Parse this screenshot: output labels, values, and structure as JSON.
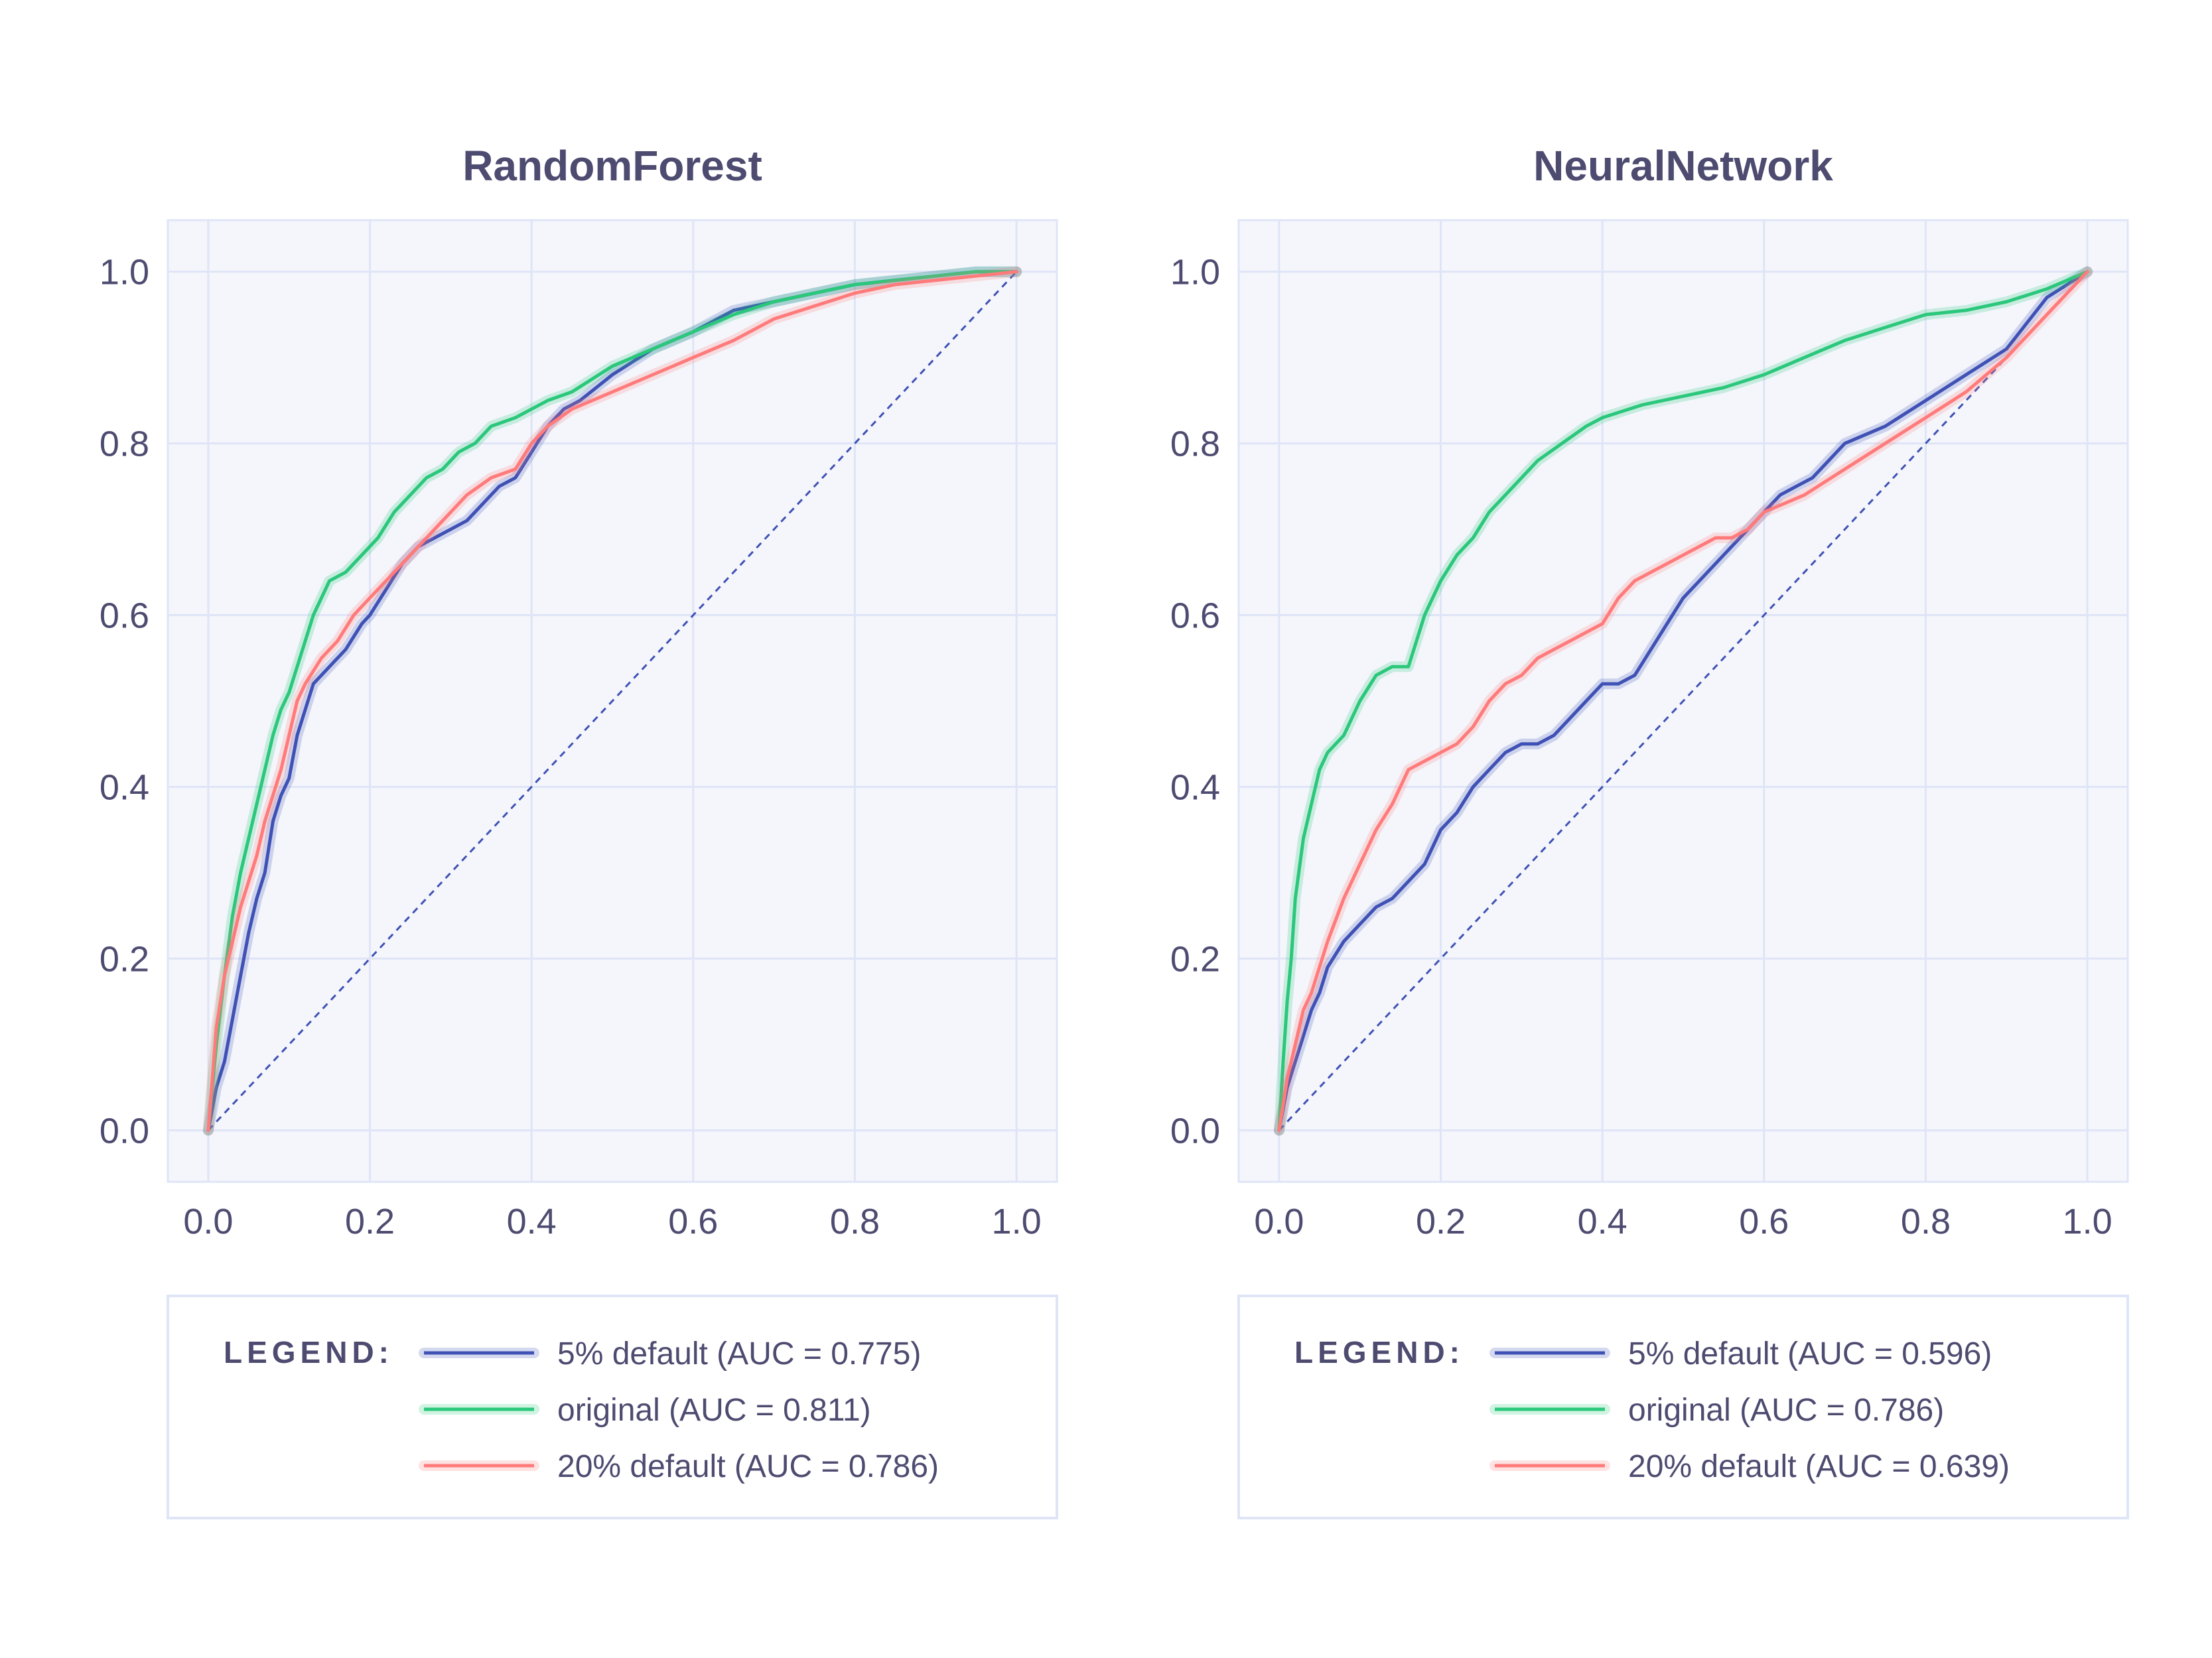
{
  "colors": {
    "plot_bg": "#f4f6fb",
    "grid": "#dfe5f7",
    "frame": "#dfe5f7",
    "text": "#4d4b70",
    "diagonal": "#3f51b5"
  },
  "legend_title": "LEGEND:",
  "chart_data": [
    {
      "type": "line",
      "title": "RandomForest",
      "xlabel": "",
      "ylabel": "",
      "xlim": [
        -0.05,
        1.05
      ],
      "ylim": [
        -0.06,
        1.06
      ],
      "xticks": [
        "0.0",
        "0.2",
        "0.4",
        "0.6",
        "0.8",
        "1.0"
      ],
      "yticks": [
        "0.0",
        "0.2",
        "0.4",
        "0.6",
        "0.8",
        "1.0"
      ],
      "grid": true,
      "legend_position": "bottom",
      "diagonal": {
        "x": [
          0,
          1
        ],
        "y": [
          0,
          1
        ],
        "style": "dashed"
      },
      "series": [
        {
          "name": "5% default (AUC = 0.775)",
          "color": "#3f51b5",
          "x": [
            0,
            0.01,
            0.02,
            0.03,
            0.04,
            0.05,
            0.06,
            0.07,
            0.08,
            0.09,
            0.1,
            0.11,
            0.12,
            0.13,
            0.15,
            0.17,
            0.19,
            0.2,
            0.22,
            0.24,
            0.26,
            0.28,
            0.3,
            0.32,
            0.34,
            0.36,
            0.38,
            0.4,
            0.42,
            0.44,
            0.46,
            0.5,
            0.55,
            0.6,
            0.65,
            0.7,
            0.75,
            0.8,
            0.85,
            0.9,
            0.95,
            1.0
          ],
          "y": [
            0,
            0.05,
            0.08,
            0.13,
            0.18,
            0.23,
            0.27,
            0.3,
            0.36,
            0.39,
            0.41,
            0.46,
            0.49,
            0.52,
            0.54,
            0.56,
            0.59,
            0.6,
            0.63,
            0.66,
            0.68,
            0.69,
            0.7,
            0.71,
            0.73,
            0.75,
            0.76,
            0.79,
            0.82,
            0.84,
            0.85,
            0.88,
            0.91,
            0.93,
            0.955,
            0.965,
            0.975,
            0.985,
            0.99,
            0.995,
            1.0,
            1.0
          ]
        },
        {
          "name": "original (AUC = 0.811)",
          "color": "#2bc77b",
          "x": [
            0,
            0.01,
            0.02,
            0.03,
            0.04,
            0.05,
            0.06,
            0.07,
            0.08,
            0.09,
            0.1,
            0.11,
            0.12,
            0.13,
            0.14,
            0.15,
            0.17,
            0.19,
            0.21,
            0.23,
            0.25,
            0.27,
            0.29,
            0.31,
            0.33,
            0.35,
            0.38,
            0.4,
            0.42,
            0.45,
            0.5,
            0.55,
            0.6,
            0.65,
            0.7,
            0.75,
            0.8,
            0.85,
            0.9,
            0.95,
            1.0
          ],
          "y": [
            0,
            0.1,
            0.18,
            0.25,
            0.3,
            0.34,
            0.38,
            0.42,
            0.46,
            0.49,
            0.51,
            0.54,
            0.57,
            0.6,
            0.62,
            0.64,
            0.65,
            0.67,
            0.69,
            0.72,
            0.74,
            0.76,
            0.77,
            0.79,
            0.8,
            0.82,
            0.83,
            0.84,
            0.85,
            0.86,
            0.89,
            0.91,
            0.93,
            0.95,
            0.965,
            0.975,
            0.985,
            0.99,
            0.995,
            1.0,
            1.0
          ]
        },
        {
          "name": "20% default (AUC = 0.786)",
          "color": "#ff7b7b",
          "x": [
            0,
            0.005,
            0.01,
            0.02,
            0.03,
            0.04,
            0.05,
            0.06,
            0.07,
            0.08,
            0.09,
            0.1,
            0.11,
            0.12,
            0.14,
            0.16,
            0.18,
            0.2,
            0.22,
            0.24,
            0.26,
            0.28,
            0.3,
            0.32,
            0.35,
            0.38,
            0.4,
            0.42,
            0.45,
            0.5,
            0.55,
            0.6,
            0.65,
            0.7,
            0.75,
            0.8,
            0.85,
            0.9,
            0.95,
            1.0
          ],
          "y": [
            0,
            0.06,
            0.12,
            0.18,
            0.22,
            0.26,
            0.29,
            0.32,
            0.36,
            0.39,
            0.42,
            0.46,
            0.5,
            0.52,
            0.55,
            0.57,
            0.6,
            0.62,
            0.64,
            0.66,
            0.68,
            0.7,
            0.72,
            0.74,
            0.76,
            0.77,
            0.8,
            0.82,
            0.84,
            0.86,
            0.88,
            0.9,
            0.92,
            0.945,
            0.96,
            0.975,
            0.985,
            0.99,
            0.995,
            1.0
          ]
        }
      ]
    },
    {
      "type": "line",
      "title": "NeuralNetwork",
      "xlabel": "",
      "ylabel": "",
      "xlim": [
        -0.05,
        1.05
      ],
      "ylim": [
        -0.06,
        1.06
      ],
      "xticks": [
        "0.0",
        "0.2",
        "0.4",
        "0.6",
        "0.8",
        "1.0"
      ],
      "yticks": [
        "0.0",
        "0.2",
        "0.4",
        "0.6",
        "0.8",
        "1.0"
      ],
      "grid": true,
      "legend_position": "bottom",
      "diagonal": {
        "x": [
          0,
          1
        ],
        "y": [
          0,
          1
        ],
        "style": "dashed"
      },
      "series": [
        {
          "name": "5% default (AUC = 0.596)",
          "color": "#3f51b5",
          "x": [
            0,
            0.01,
            0.02,
            0.03,
            0.04,
            0.05,
            0.06,
            0.08,
            0.1,
            0.12,
            0.14,
            0.16,
            0.18,
            0.2,
            0.22,
            0.24,
            0.26,
            0.28,
            0.3,
            0.32,
            0.34,
            0.36,
            0.38,
            0.4,
            0.42,
            0.44,
            0.46,
            0.48,
            0.5,
            0.52,
            0.54,
            0.56,
            0.58,
            0.6,
            0.62,
            0.64,
            0.66,
            0.68,
            0.7,
            0.75,
            0.8,
            0.85,
            0.9,
            0.95,
            1.0
          ],
          "y": [
            0,
            0.05,
            0.08,
            0.11,
            0.14,
            0.16,
            0.19,
            0.22,
            0.24,
            0.26,
            0.27,
            0.29,
            0.31,
            0.35,
            0.37,
            0.4,
            0.42,
            0.44,
            0.45,
            0.45,
            0.46,
            0.48,
            0.5,
            0.52,
            0.52,
            0.53,
            0.56,
            0.59,
            0.62,
            0.64,
            0.66,
            0.68,
            0.7,
            0.72,
            0.74,
            0.75,
            0.76,
            0.78,
            0.8,
            0.82,
            0.85,
            0.88,
            0.91,
            0.97,
            1.0
          ]
        },
        {
          "name": "original (AUC = 0.786)",
          "color": "#2bc77b",
          "x": [
            0,
            0.005,
            0.01,
            0.015,
            0.02,
            0.03,
            0.04,
            0.05,
            0.06,
            0.08,
            0.1,
            0.12,
            0.14,
            0.16,
            0.17,
            0.18,
            0.2,
            0.22,
            0.24,
            0.26,
            0.28,
            0.3,
            0.32,
            0.35,
            0.38,
            0.4,
            0.45,
            0.5,
            0.55,
            0.6,
            0.65,
            0.7,
            0.75,
            0.8,
            0.85,
            0.9,
            0.95,
            1.0
          ],
          "y": [
            0,
            0.08,
            0.15,
            0.2,
            0.27,
            0.34,
            0.38,
            0.42,
            0.44,
            0.46,
            0.5,
            0.53,
            0.54,
            0.54,
            0.57,
            0.6,
            0.64,
            0.67,
            0.69,
            0.72,
            0.74,
            0.76,
            0.78,
            0.8,
            0.82,
            0.83,
            0.845,
            0.855,
            0.865,
            0.88,
            0.9,
            0.92,
            0.935,
            0.95,
            0.955,
            0.965,
            0.98,
            1.0
          ]
        },
        {
          "name": "20% default (AUC = 0.639)",
          "color": "#ff7b7b",
          "x": [
            0,
            0.01,
            0.02,
            0.03,
            0.04,
            0.05,
            0.06,
            0.08,
            0.1,
            0.12,
            0.14,
            0.16,
            0.18,
            0.2,
            0.22,
            0.24,
            0.26,
            0.28,
            0.3,
            0.32,
            0.34,
            0.36,
            0.38,
            0.4,
            0.42,
            0.44,
            0.46,
            0.48,
            0.5,
            0.52,
            0.54,
            0.56,
            0.58,
            0.6,
            0.65,
            0.7,
            0.75,
            0.8,
            0.85,
            0.9,
            0.95,
            1.0
          ],
          "y": [
            0,
            0.06,
            0.1,
            0.14,
            0.16,
            0.19,
            0.22,
            0.27,
            0.31,
            0.35,
            0.38,
            0.42,
            0.43,
            0.44,
            0.45,
            0.47,
            0.5,
            0.52,
            0.53,
            0.55,
            0.56,
            0.57,
            0.58,
            0.59,
            0.62,
            0.64,
            0.65,
            0.66,
            0.67,
            0.68,
            0.69,
            0.69,
            0.7,
            0.72,
            0.74,
            0.77,
            0.8,
            0.83,
            0.86,
            0.9,
            0.95,
            1.0
          ]
        }
      ]
    }
  ]
}
